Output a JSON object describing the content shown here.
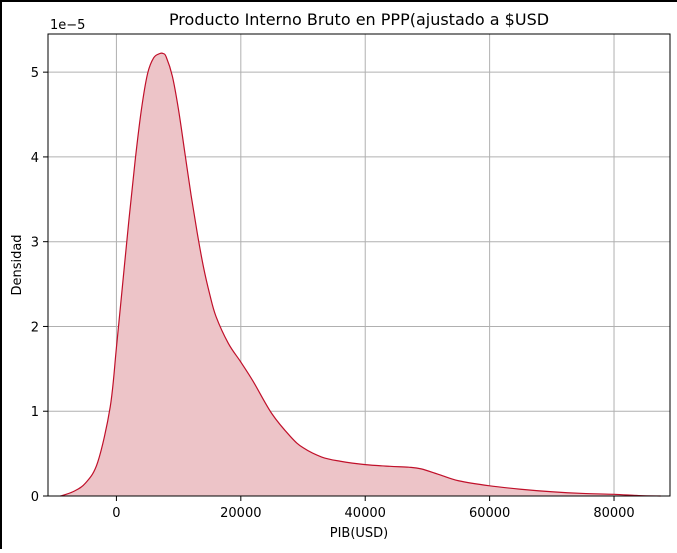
{
  "chart_data": {
    "type": "area",
    "title": "Producto Interno Bruto en PPP(ajustado a $USD",
    "xlabel": "PIB(USD)",
    "ylabel": "Densidad",
    "y_offset_label": "1e−5",
    "xlim": [
      -11000,
      89000
    ],
    "ylim": [
      0,
      5.45
    ],
    "x_ticks": [
      0,
      20000,
      40000,
      60000,
      80000
    ],
    "x_tick_labels": [
      "0",
      "20000",
      "40000",
      "60000",
      "80000"
    ],
    "y_ticks": [
      0,
      1,
      2,
      3,
      4,
      5
    ],
    "y_tick_labels": [
      "0",
      "1",
      "2",
      "3",
      "4",
      "5"
    ],
    "grid": true,
    "series": [
      {
        "line_color": "#c0102a",
        "fill_color": "#edc4c8",
        "x": [
          -9000,
          -7000,
          -5000,
          -3000,
          -1000,
          0,
          1000,
          2000,
          3000,
          4000,
          5000,
          6000,
          7000,
          7500,
          8000,
          9000,
          10000,
          11000,
          12000,
          13000,
          14000,
          15000,
          16000,
          18000,
          20000,
          22000,
          25000,
          28000,
          30000,
          33000,
          36000,
          40000,
          44000,
          47000,
          49000,
          52000,
          55000,
          60000,
          65000,
          70000,
          75000,
          80000,
          84000,
          87500
        ],
        "y": [
          0.0,
          0.05,
          0.15,
          0.4,
          1.05,
          1.75,
          2.5,
          3.25,
          3.95,
          4.55,
          4.98,
          5.17,
          5.22,
          5.22,
          5.18,
          4.95,
          4.55,
          4.05,
          3.55,
          3.1,
          2.7,
          2.38,
          2.12,
          1.8,
          1.58,
          1.35,
          0.97,
          0.7,
          0.57,
          0.46,
          0.41,
          0.37,
          0.35,
          0.34,
          0.32,
          0.25,
          0.18,
          0.12,
          0.08,
          0.05,
          0.03,
          0.02,
          0.005,
          0.0
        ]
      }
    ]
  }
}
